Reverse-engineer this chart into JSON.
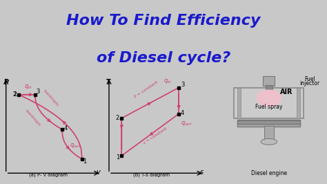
{
  "title_line1": "How To Find Efficiency",
  "title_line2": "of Diesel cycle?",
  "title_bg_color": "#88ee00",
  "title_text_color": "#1a1acc",
  "bottom_bg_color": "#c8c8c8",
  "diagram_bg": "#d8d8d8",
  "curve_color": "#d04070",
  "label_a": "(a) P- v diagram",
  "label_b": "(b) T-s diagram",
  "label_engine": "Diesel engine"
}
